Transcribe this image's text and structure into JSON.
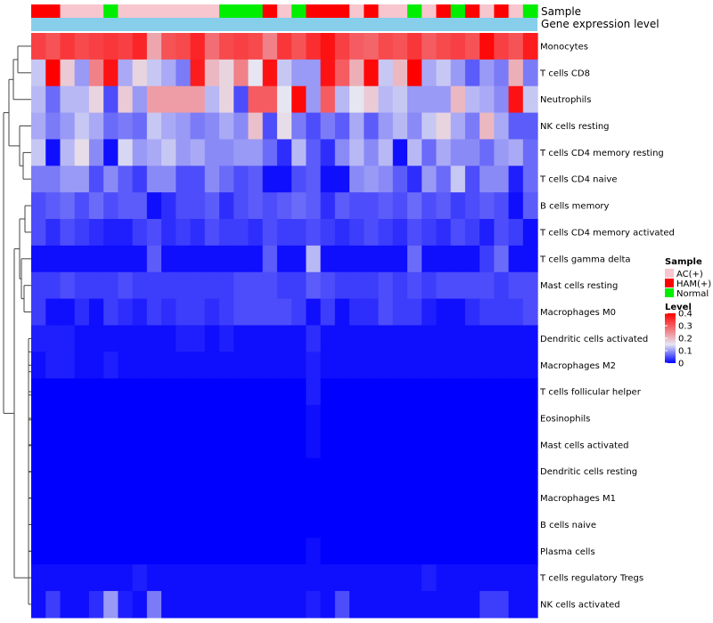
{
  "chart_data": {
    "type": "heatmap",
    "annotations": {
      "sample_label": "Sample",
      "expression_label": "Gene expression level"
    },
    "sample_colors": {
      "AC(+)": "#F7C6CE",
      "HAM(+)": "#FF0000",
      "Normal": "#00EE00"
    },
    "expression_bar_color": "#87CEEB",
    "column_samples": [
      "HAM(+)",
      "HAM(+)",
      "AC(+)",
      "AC(+)",
      "AC(+)",
      "Normal",
      "AC(+)",
      "AC(+)",
      "AC(+)",
      "AC(+)",
      "AC(+)",
      "AC(+)",
      "AC(+)",
      "Normal",
      "Normal",
      "Normal",
      "HAM(+)",
      "AC(+)",
      "Normal",
      "HAM(+)",
      "HAM(+)",
      "HAM(+)",
      "AC(+)",
      "HAM(+)",
      "AC(+)",
      "AC(+)",
      "Normal",
      "AC(+)",
      "HAM(+)",
      "Normal",
      "HAM(+)",
      "AC(+)",
      "HAM(+)",
      "AC(+)",
      "Normal"
    ],
    "rows": [
      {
        "name": "Monocytes",
        "values": [
          0.33,
          0.31,
          0.34,
          0.32,
          0.33,
          0.34,
          0.33,
          0.36,
          0.22,
          0.31,
          0.32,
          0.36,
          0.28,
          0.32,
          0.33,
          0.32,
          0.26,
          0.34,
          0.31,
          0.35,
          0.38,
          0.33,
          0.3,
          0.29,
          0.32,
          0.31,
          0.34,
          0.3,
          0.32,
          0.33,
          0.31,
          0.39,
          0.33,
          0.31,
          0.37
        ]
      },
      {
        "name": "T cells CD8",
        "values": [
          0.13,
          0.4,
          0.18,
          0.1,
          0.26,
          0.38,
          0.11,
          0.17,
          0.13,
          0.11,
          0.08,
          0.37,
          0.2,
          0.17,
          0.26,
          0.15,
          0.38,
          0.13,
          0.1,
          0.1,
          0.38,
          0.3,
          0.21,
          0.39,
          0.13,
          0.2,
          0.4,
          0.11,
          0.13,
          0.1,
          0.06,
          0.1,
          0.08,
          0.21,
          0.08
        ]
      },
      {
        "name": "Neutrophils",
        "values": [
          0.12,
          0.07,
          0.12,
          0.12,
          0.17,
          0.05,
          0.18,
          0.1,
          0.23,
          0.23,
          0.23,
          0.23,
          0.12,
          0.17,
          0.05,
          0.3,
          0.3,
          0.15,
          0.39,
          0.1,
          0.3,
          0.12,
          0.15,
          0.18,
          0.12,
          0.13,
          0.1,
          0.1,
          0.1,
          0.2,
          0.12,
          0.11,
          0.09,
          0.38,
          0.13
        ]
      },
      {
        "name": "NK cells resting",
        "values": [
          0.11,
          0.08,
          0.1,
          0.13,
          0.11,
          0.07,
          0.08,
          0.07,
          0.13,
          0.11,
          0.1,
          0.08,
          0.09,
          0.11,
          0.09,
          0.19,
          0.05,
          0.16,
          0.08,
          0.05,
          0.08,
          0.06,
          0.11,
          0.06,
          0.1,
          0.12,
          0.09,
          0.13,
          0.17,
          0.11,
          0.08,
          0.2,
          0.11,
          0.06,
          0.06
        ]
      },
      {
        "name": "T cells CD4 memory resting",
        "values": [
          0.13,
          0.01,
          0.12,
          0.16,
          0.09,
          0.01,
          0.14,
          0.1,
          0.11,
          0.13,
          0.1,
          0.11,
          0.09,
          0.09,
          0.1,
          0.1,
          0.07,
          0.03,
          0.12,
          0.06,
          0.03,
          0.09,
          0.12,
          0.09,
          0.12,
          0.01,
          0.12,
          0.07,
          0.11,
          0.09,
          0.09,
          0.07,
          0.1,
          0.11,
          0.07
        ]
      },
      {
        "name": "T cells CD4 naive",
        "values": [
          0.08,
          0.08,
          0.1,
          0.1,
          0.05,
          0.09,
          0.06,
          0.04,
          0.09,
          0.09,
          0.05,
          0.05,
          0.09,
          0.07,
          0.05,
          0.06,
          0.01,
          0.01,
          0.05,
          0.06,
          0.01,
          0.01,
          0.09,
          0.1,
          0.09,
          0.06,
          0.03,
          0.1,
          0.07,
          0.13,
          0.05,
          0.09,
          0.09,
          0.02,
          0.07
        ]
      },
      {
        "name": "B cells memory",
        "values": [
          0.05,
          0.06,
          0.07,
          0.05,
          0.07,
          0.05,
          0.06,
          0.06,
          0.01,
          0.03,
          0.05,
          0.05,
          0.06,
          0.03,
          0.05,
          0.06,
          0.05,
          0.06,
          0.07,
          0.06,
          0.03,
          0.06,
          0.05,
          0.05,
          0.06,
          0.05,
          0.07,
          0.05,
          0.06,
          0.04,
          0.05,
          0.06,
          0.05,
          0.01,
          0.06
        ]
      },
      {
        "name": "T cells CD4 memory activated",
        "values": [
          0.05,
          0.03,
          0.05,
          0.04,
          0.03,
          0.02,
          0.02,
          0.04,
          0.05,
          0.03,
          0.04,
          0.03,
          0.05,
          0.04,
          0.04,
          0.03,
          0.05,
          0.04,
          0.04,
          0.05,
          0.04,
          0.03,
          0.04,
          0.05,
          0.04,
          0.03,
          0.05,
          0.04,
          0.03,
          0.05,
          0.04,
          0.02,
          0.05,
          0.04,
          0.01
        ]
      },
      {
        "name": "T cells gamma delta",
        "values": [
          0.01,
          0.01,
          0.01,
          0.01,
          0.01,
          0.01,
          0.01,
          0.01,
          0.06,
          0.01,
          0.01,
          0.01,
          0.01,
          0.01,
          0.01,
          0.01,
          0.06,
          0.01,
          0.01,
          0.12,
          0.01,
          0.01,
          0.01,
          0.01,
          0.01,
          0.01,
          0.07,
          0.01,
          0.01,
          0.01,
          0.01,
          0.04,
          0.07,
          0.01,
          0.01
        ]
      },
      {
        "name": "Mast cells resting",
        "values": [
          0.04,
          0.04,
          0.05,
          0.04,
          0.04,
          0.04,
          0.05,
          0.04,
          0.04,
          0.04,
          0.04,
          0.04,
          0.04,
          0.04,
          0.05,
          0.05,
          0.05,
          0.04,
          0.04,
          0.06,
          0.05,
          0.04,
          0.04,
          0.04,
          0.05,
          0.04,
          0.05,
          0.04,
          0.05,
          0.05,
          0.05,
          0.05,
          0.04,
          0.05,
          0.05
        ]
      },
      {
        "name": "Macrophages M0",
        "values": [
          0.04,
          0.01,
          0.01,
          0.03,
          0.01,
          0.04,
          0.03,
          0.02,
          0.04,
          0.03,
          0.04,
          0.04,
          0.03,
          0.04,
          0.05,
          0.05,
          0.05,
          0.05,
          0.04,
          0.01,
          0.04,
          0.01,
          0.03,
          0.03,
          0.05,
          0.04,
          0.04,
          0.02,
          0.01,
          0.01,
          0.03,
          0.04,
          0.04,
          0.04,
          0.05
        ]
      },
      {
        "name": "Dendritic cells activated",
        "values": [
          0.02,
          0.02,
          0.02,
          0.01,
          0.01,
          0.01,
          0.01,
          0.01,
          0.01,
          0.01,
          0.02,
          0.02,
          0.01,
          0.02,
          0.01,
          0.01,
          0.01,
          0.01,
          0.01,
          0.03,
          0.01,
          0.01,
          0.01,
          0.01,
          0.01,
          0.01,
          0.01,
          0.01,
          0.01,
          0.01,
          0.01,
          0.01,
          0.01,
          0.01,
          0.01
        ]
      },
      {
        "name": "Macrophages M2",
        "values": [
          0.01,
          0.02,
          0.02,
          0.01,
          0.01,
          0.02,
          0.01,
          0.01,
          0.01,
          0.01,
          0.01,
          0.01,
          0.01,
          0.01,
          0.01,
          0.01,
          0.01,
          0.01,
          0.01,
          0.02,
          0.01,
          0.01,
          0.01,
          0.01,
          0.01,
          0.01,
          0.01,
          0.01,
          0.01,
          0.01,
          0.01,
          0.01,
          0.01,
          0.01,
          0.01
        ]
      },
      {
        "name": "T cells follicular helper",
        "values": [
          0,
          0,
          0,
          0,
          0,
          0,
          0,
          0,
          0,
          0,
          0,
          0,
          0,
          0,
          0,
          0,
          0,
          0,
          0,
          0.02,
          0,
          0,
          0,
          0,
          0,
          0,
          0,
          0,
          0,
          0,
          0,
          0,
          0,
          0,
          0
        ]
      },
      {
        "name": "Eosinophils",
        "values": [
          0,
          0,
          0,
          0,
          0,
          0,
          0,
          0,
          0,
          0,
          0,
          0,
          0,
          0,
          0,
          0,
          0,
          0,
          0,
          0.01,
          0,
          0,
          0,
          0,
          0,
          0,
          0,
          0,
          0,
          0,
          0,
          0,
          0,
          0,
          0
        ]
      },
      {
        "name": "Mast cells activated",
        "values": [
          0,
          0,
          0,
          0,
          0,
          0,
          0,
          0,
          0,
          0,
          0,
          0,
          0,
          0,
          0,
          0,
          0,
          0,
          0,
          0.01,
          0,
          0,
          0,
          0,
          0,
          0,
          0,
          0,
          0,
          0,
          0,
          0,
          0,
          0,
          0
        ]
      },
      {
        "name": "Dendritic cells resting",
        "values": [
          0,
          0,
          0,
          0,
          0,
          0,
          0,
          0,
          0,
          0,
          0,
          0,
          0,
          0,
          0,
          0,
          0,
          0,
          0,
          0,
          0,
          0,
          0,
          0,
          0,
          0,
          0,
          0,
          0,
          0,
          0,
          0,
          0,
          0,
          0
        ]
      },
      {
        "name": "Macrophages M1",
        "values": [
          0,
          0,
          0,
          0,
          0,
          0,
          0,
          0,
          0,
          0,
          0,
          0,
          0,
          0,
          0,
          0,
          0,
          0,
          0,
          0,
          0,
          0,
          0,
          0,
          0,
          0,
          0,
          0,
          0,
          0,
          0,
          0,
          0,
          0,
          0
        ]
      },
      {
        "name": "B cells naive",
        "values": [
          0,
          0,
          0,
          0,
          0,
          0,
          0,
          0,
          0,
          0,
          0,
          0,
          0,
          0,
          0,
          0,
          0,
          0,
          0,
          0,
          0,
          0,
          0,
          0,
          0,
          0,
          0,
          0,
          0,
          0,
          0,
          0,
          0,
          0,
          0
        ]
      },
      {
        "name": "Plasma cells",
        "values": [
          0,
          0,
          0,
          0,
          0,
          0,
          0,
          0,
          0,
          0,
          0,
          0,
          0,
          0,
          0,
          0,
          0,
          0,
          0,
          0.01,
          0,
          0,
          0,
          0,
          0,
          0,
          0,
          0,
          0,
          0,
          0,
          0,
          0,
          0,
          0
        ]
      },
      {
        "name": "T cells regulatory  Tregs",
        "values": [
          0.01,
          0.01,
          0.01,
          0.01,
          0.01,
          0.01,
          0.01,
          0.02,
          0.01,
          0.01,
          0.01,
          0.01,
          0.01,
          0.01,
          0.01,
          0.01,
          0.01,
          0.01,
          0.01,
          0.01,
          0.01,
          0.01,
          0.01,
          0.01,
          0.01,
          0.01,
          0.01,
          0.02,
          0.01,
          0.01,
          0.01,
          0.01,
          0.01,
          0.01,
          0.01
        ]
      },
      {
        "name": "NK cells activated",
        "values": [
          0.01,
          0.04,
          0.01,
          0.01,
          0.03,
          0.1,
          0.02,
          0.01,
          0.08,
          0.01,
          0.01,
          0.01,
          0.01,
          0.01,
          0.01,
          0.01,
          0.01,
          0.01,
          0.01,
          0.02,
          0.01,
          0.05,
          0.01,
          0.01,
          0.01,
          0.01,
          0.01,
          0.01,
          0.01,
          0.01,
          0.01,
          0.04,
          0.04,
          0.01,
          0.01
        ]
      }
    ],
    "color_scale": {
      "min": 0,
      "max": 0.4,
      "low": "#0000FF",
      "mid": "#E6E6F2",
      "high": "#FF0000",
      "mid_value": 0.15
    },
    "legend": {
      "sample_title": "Sample",
      "sample_entries": [
        "AC(+)",
        "HAM(+)",
        "Normal"
      ],
      "level_title": "Level",
      "level_ticks": [
        "0.4",
        "0.3",
        "0.2",
        "0.1",
        "0"
      ]
    }
  }
}
